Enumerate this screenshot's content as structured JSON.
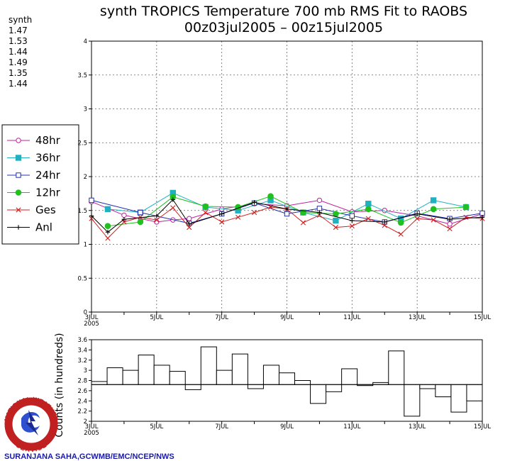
{
  "title_line1": "synth TROPICS Temperature 700 mb RMS Fit to RAOBS",
  "title_line2": "00z03jul2005 – 00z15jul2005",
  "stats": {
    "label": "synth",
    "values": [
      {
        "text": "1.47",
        "color": "#c020a0"
      },
      {
        "text": "1.53",
        "color": "#20b0c0"
      },
      {
        "text": "1.44",
        "color": "#2030b0"
      },
      {
        "text": "1.49",
        "color": "#20c020"
      },
      {
        "text": "1.35",
        "color": "#d02020"
      },
      {
        "text": "1.44",
        "color": "#000000"
      }
    ]
  },
  "credit": "SURANJANA SAHA,GCWMB/EMC/NCEP/NWS",
  "logo": {
    "top": "NATIONAL WEATHER",
    "bottom": "SERVICE"
  },
  "chart_data": [
    {
      "type": "line",
      "title": "synth TROPICS Temperature 700 mb RMS Fit to RAOBS",
      "ylim": [
        0,
        4
      ],
      "xlim": [
        0,
        24
      ],
      "y_ticks": [
        "0",
        "0.5",
        "1",
        "1.5",
        "2",
        "2.5",
        "3",
        "3.5",
        "4"
      ],
      "x_ticks": [
        {
          "at": 0,
          "label": "3JUL",
          "sub": "2005"
        },
        {
          "at": 4,
          "label": "5JUL"
        },
        {
          "at": 8,
          "label": "7JUL"
        },
        {
          "at": 12,
          "label": "9JUL"
        },
        {
          "at": 16,
          "label": "11JUL"
        },
        {
          "at": 20,
          "label": "13JUL"
        },
        {
          "at": 24,
          "label": "15JUL"
        }
      ],
      "grid": true,
      "legend_position": "left",
      "series": [
        {
          "name": "48hr",
          "color": "#c020a0",
          "marker": "circle-open",
          "points": [
            [
              0,
              1.63
            ],
            [
              2,
              1.43
            ],
            [
              4,
              1.33
            ],
            [
              5,
              1.36
            ],
            [
              6,
              1.38
            ],
            [
              8,
              1.52
            ],
            [
              10,
              1.6
            ],
            [
              12,
              1.57
            ],
            [
              14,
              1.65
            ],
            [
              16,
              1.48
            ],
            [
              18,
              1.5
            ],
            [
              20,
              1.42
            ],
            [
              22,
              1.3
            ],
            [
              24,
              1.45
            ]
          ]
        },
        {
          "name": "36hr",
          "color": "#20b0c0",
          "marker": "square-filled",
          "points": [
            [
              1,
              1.52
            ],
            [
              3,
              1.47
            ],
            [
              5,
              1.76
            ],
            [
              7,
              1.55
            ],
            [
              9,
              1.5
            ],
            [
              11,
              1.65
            ],
            [
              13,
              1.47
            ],
            [
              15,
              1.35
            ],
            [
              17,
              1.6
            ],
            [
              19,
              1.38
            ],
            [
              21,
              1.65
            ],
            [
              23,
              1.55
            ]
          ]
        },
        {
          "name": "24hr",
          "color": "#2030b0",
          "marker": "square-open",
          "points": [
            [
              0,
              1.65
            ],
            [
              3,
              1.47
            ],
            [
              6,
              1.31
            ],
            [
              8,
              1.45
            ],
            [
              10,
              1.61
            ],
            [
              12,
              1.45
            ],
            [
              14,
              1.53
            ],
            [
              16,
              1.42
            ],
            [
              18,
              1.33
            ],
            [
              20,
              1.46
            ],
            [
              22,
              1.38
            ],
            [
              24,
              1.46
            ]
          ]
        },
        {
          "name": "12hr",
          "color": "#20c020",
          "marker": "circle-filled",
          "points": [
            [
              1,
              1.27
            ],
            [
              3,
              1.33
            ],
            [
              5,
              1.7
            ],
            [
              7,
              1.56
            ],
            [
              9,
              1.55
            ],
            [
              11,
              1.71
            ],
            [
              13,
              1.47
            ],
            [
              15,
              1.45
            ],
            [
              17,
              1.52
            ],
            [
              19,
              1.32
            ],
            [
              21,
              1.52
            ],
            [
              23,
              1.55
            ]
          ]
        },
        {
          "name": "Ges",
          "color": "#d02020",
          "marker": "x",
          "points": [
            [
              0,
              1.38
            ],
            [
              1,
              1.09
            ],
            [
              2,
              1.33
            ],
            [
              3,
              1.4
            ],
            [
              4,
              1.36
            ],
            [
              5,
              1.54
            ],
            [
              6,
              1.25
            ],
            [
              7,
              1.47
            ],
            [
              8,
              1.33
            ],
            [
              9,
              1.4
            ],
            [
              10,
              1.47
            ],
            [
              11,
              1.55
            ],
            [
              12,
              1.52
            ],
            [
              13,
              1.32
            ],
            [
              14,
              1.43
            ],
            [
              15,
              1.25
            ],
            [
              16,
              1.27
            ],
            [
              17,
              1.38
            ],
            [
              18,
              1.28
            ],
            [
              19,
              1.15
            ],
            [
              20,
              1.38
            ],
            [
              21,
              1.36
            ],
            [
              22,
              1.23
            ],
            [
              23,
              1.4
            ],
            [
              24,
              1.38
            ]
          ]
        },
        {
          "name": "Anl",
          "color": "#000000",
          "marker": "plus",
          "points": [
            [
              0,
              1.42
            ],
            [
              1,
              1.18
            ],
            [
              2,
              1.37
            ],
            [
              4,
              1.42
            ],
            [
              5,
              1.66
            ],
            [
              6,
              1.3
            ],
            [
              8,
              1.45
            ],
            [
              10,
              1.62
            ],
            [
              12,
              1.52
            ],
            [
              14,
              1.47
            ],
            [
              16,
              1.35
            ],
            [
              18,
              1.33
            ],
            [
              20,
              1.45
            ],
            [
              22,
              1.37
            ],
            [
              24,
              1.4
            ]
          ]
        }
      ]
    },
    {
      "type": "bar",
      "ylabel": "Counts (in hundreds)",
      "ylim": [
        2,
        3.6
      ],
      "baseline": 2.72,
      "y_ticks": [
        "2",
        "2.2",
        "2.4",
        "2.6",
        "2.8",
        "3",
        "3.2",
        "3.4",
        "3.6"
      ],
      "x_ticks": [
        {
          "at": 0,
          "label": "3JUL",
          "sub": "2005"
        },
        {
          "at": 4,
          "label": "5JUL"
        },
        {
          "at": 8,
          "label": "7JUL"
        },
        {
          "at": 12,
          "label": "9JUL"
        },
        {
          "at": 16,
          "label": "11JUL"
        },
        {
          "at": 20,
          "label": "13JUL"
        },
        {
          "at": 24,
          "label": "15JUL"
        }
      ],
      "values": [
        2.78,
        3.05,
        3.0,
        3.3,
        3.1,
        2.98,
        2.62,
        3.46,
        3.0,
        3.32,
        2.64,
        3.1,
        2.95,
        2.8,
        2.35,
        2.58,
        3.03,
        2.7,
        2.76,
        3.38,
        2.1,
        2.64,
        2.48,
        2.18,
        2.4
      ]
    }
  ]
}
